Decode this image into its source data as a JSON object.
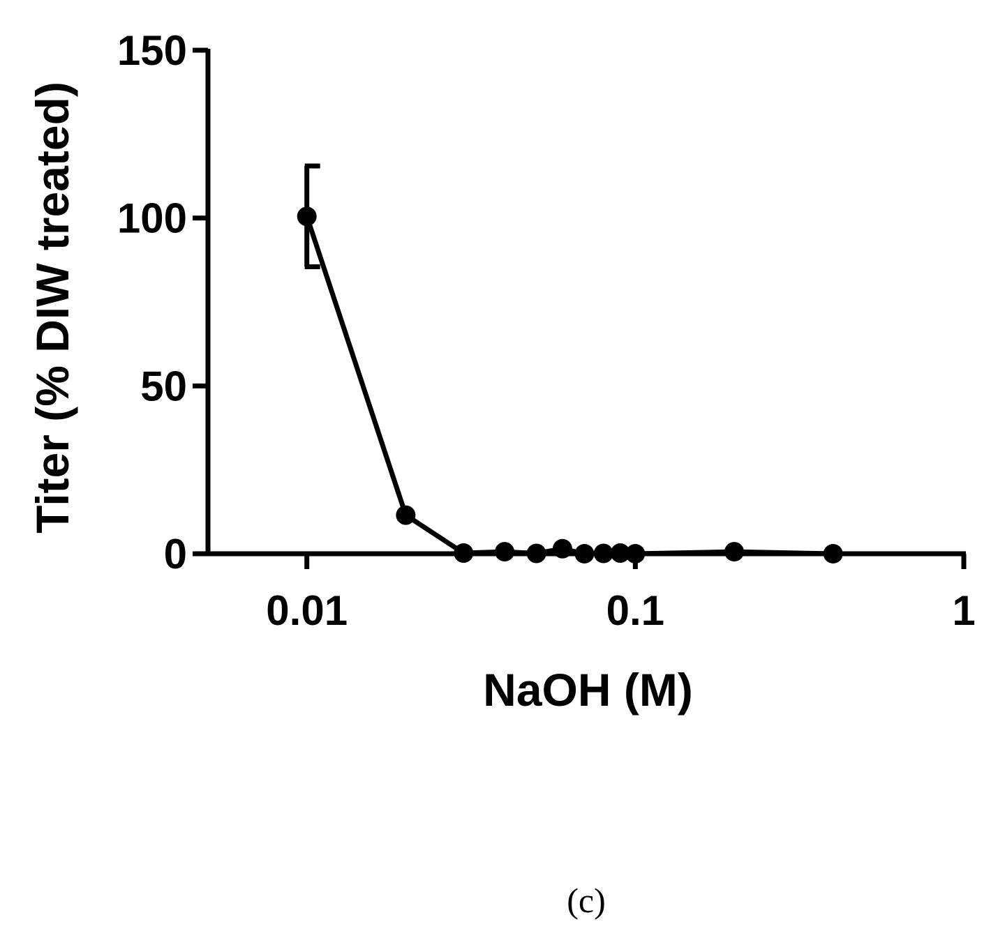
{
  "chart_data": {
    "type": "line",
    "title": "",
    "xlabel": "NaOH (M)",
    "ylabel": "Titer (% DIW treated)",
    "xscale": "log",
    "xlim": [
      0.005,
      1
    ],
    "ylim": [
      0,
      150
    ],
    "xticks": [
      0.01,
      0.1,
      1
    ],
    "xtick_labels": [
      "0.01",
      "0.1",
      "1"
    ],
    "yticks": [
      0,
      50,
      100,
      150
    ],
    "ytick_labels": [
      "0",
      "50",
      "100",
      "150"
    ],
    "grid": false,
    "legend": "none",
    "series": [
      {
        "x": [
          0.01,
          0.02,
          0.03,
          0.04,
          0.05,
          0.06,
          0.07,
          0.08,
          0.09,
          0.1,
          0.2,
          0.4
        ],
        "y": [
          100.5,
          11.5,
          0.2,
          0.6,
          0.1,
          1.5,
          0.0,
          0.1,
          0.2,
          0.0,
          0.6,
          0.0
        ],
        "error": [
          15,
          null,
          null,
          null,
          null,
          null,
          null,
          null,
          null,
          null,
          null,
          null
        ]
      }
    ],
    "panel_label": "(c)",
    "colors": {
      "line": "#000000",
      "marker": "#000000"
    }
  }
}
